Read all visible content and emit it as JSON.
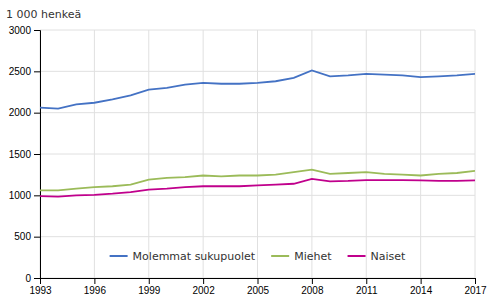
{
  "chart_data": {
    "type": "line",
    "ylabel": "1 000 henkeä",
    "x": [
      1993,
      1994,
      1995,
      1996,
      1997,
      1998,
      1999,
      2000,
      2001,
      2002,
      2003,
      2004,
      2005,
      2006,
      2007,
      2008,
      2009,
      2010,
      2011,
      2012,
      2013,
      2014,
      2015,
      2016,
      2017
    ],
    "series": [
      {
        "name": "Molemmat sukupuolet",
        "color": "#4472C4",
        "values": [
          2060,
          2050,
          2100,
          2120,
          2160,
          2210,
          2280,
          2300,
          2340,
          2360,
          2350,
          2350,
          2360,
          2380,
          2420,
          2510,
          2440,
          2450,
          2470,
          2460,
          2450,
          2430,
          2440,
          2450,
          2470
        ]
      },
      {
        "name": "Miehet",
        "color": "#9BBB59",
        "values": [
          1060,
          1060,
          1080,
          1100,
          1110,
          1130,
          1190,
          1210,
          1220,
          1240,
          1230,
          1240,
          1240,
          1250,
          1280,
          1310,
          1260,
          1270,
          1280,
          1260,
          1250,
          1240,
          1260,
          1270,
          1295
        ]
      },
      {
        "name": "Naiset",
        "color": "#C0008C",
        "values": [
          990,
          985,
          1000,
          1005,
          1020,
          1040,
          1070,
          1080,
          1100,
          1110,
          1110,
          1110,
          1120,
          1130,
          1140,
          1200,
          1170,
          1175,
          1185,
          1185,
          1185,
          1180,
          1175,
          1175,
          1180
        ]
      }
    ],
    "xlim": [
      1993,
      2017
    ],
    "ylim": [
      0,
      3000
    ],
    "xticks": [
      1993,
      1996,
      1999,
      2002,
      2005,
      2008,
      2011,
      2014,
      2017
    ],
    "yticks": [
      0,
      500,
      1000,
      1500,
      2000,
      2500,
      3000
    ],
    "grid": true,
    "legend": "bottom"
  }
}
